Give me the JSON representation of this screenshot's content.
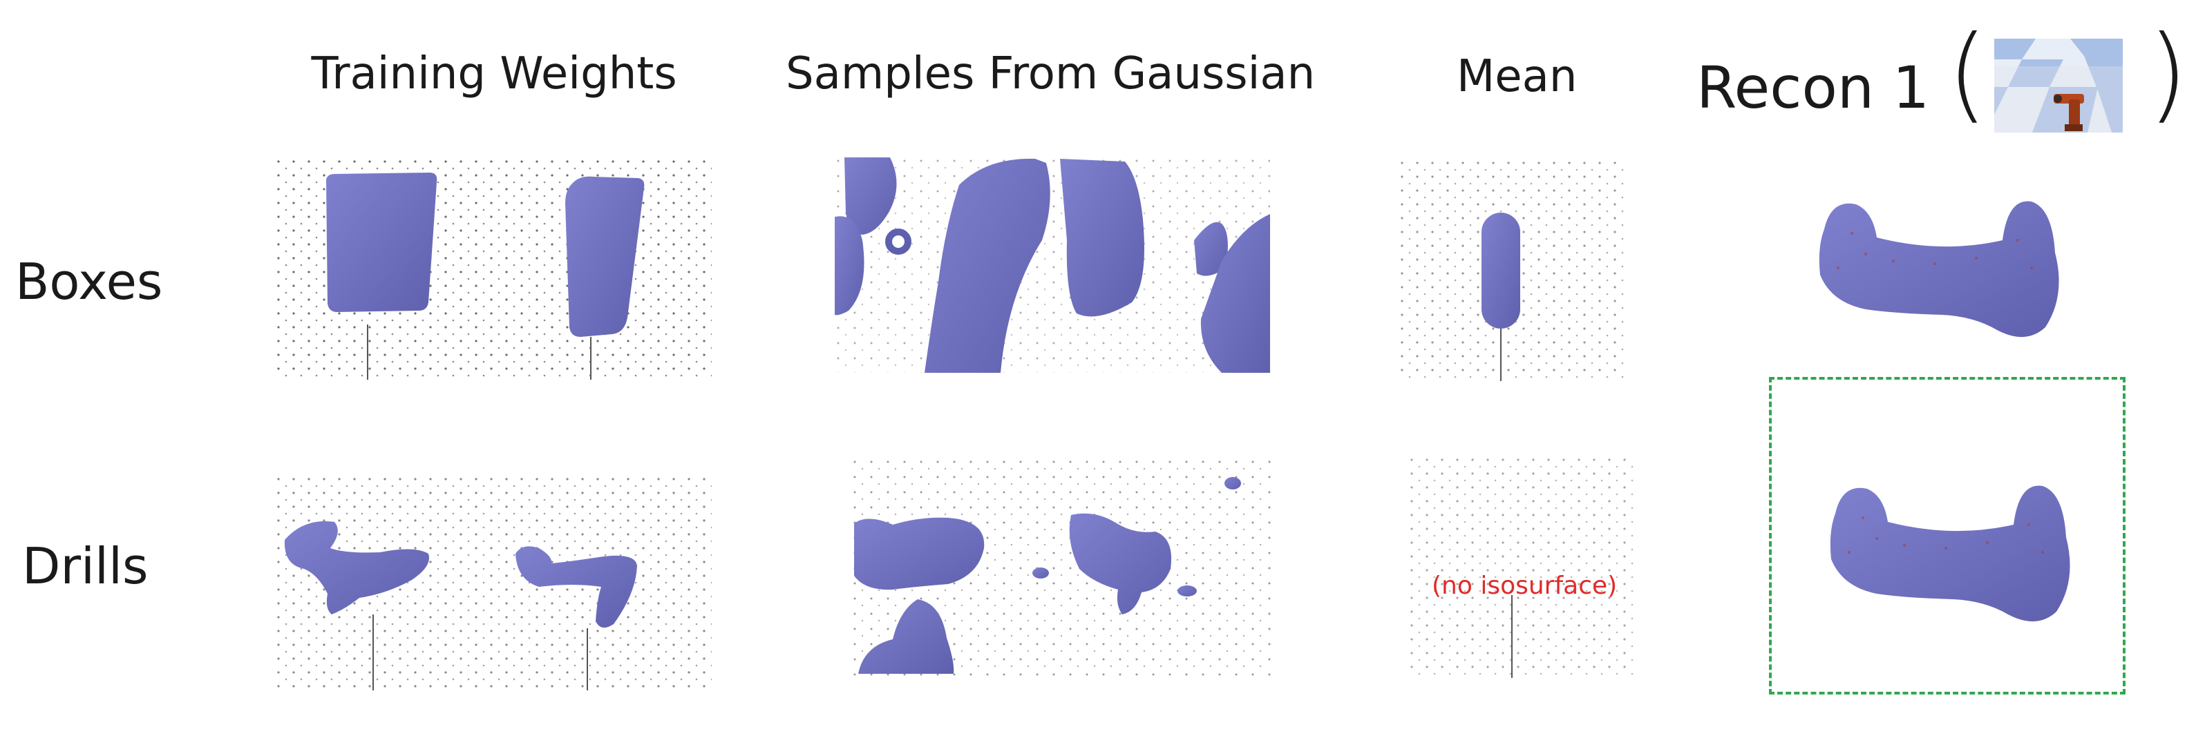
{
  "headers": {
    "training_weights": "Training Weights",
    "samples_from_gaussian": "Samples From Gaussian",
    "mean": "Mean",
    "recon": "Recon 1",
    "paren_open": "(",
    "paren_close": ")"
  },
  "rows": {
    "boxes": "Boxes",
    "drills": "Drills"
  },
  "notes": {
    "no_isosurface": "(no isosurface)"
  },
  "colors": {
    "shape_fill": "#7375c4",
    "shape_shade": "#5f60ad",
    "points": "#6a6a6a",
    "note_red": "#e02a2a",
    "dashed_green": "#2fa84f",
    "robot_orange": "#b5461e"
  }
}
